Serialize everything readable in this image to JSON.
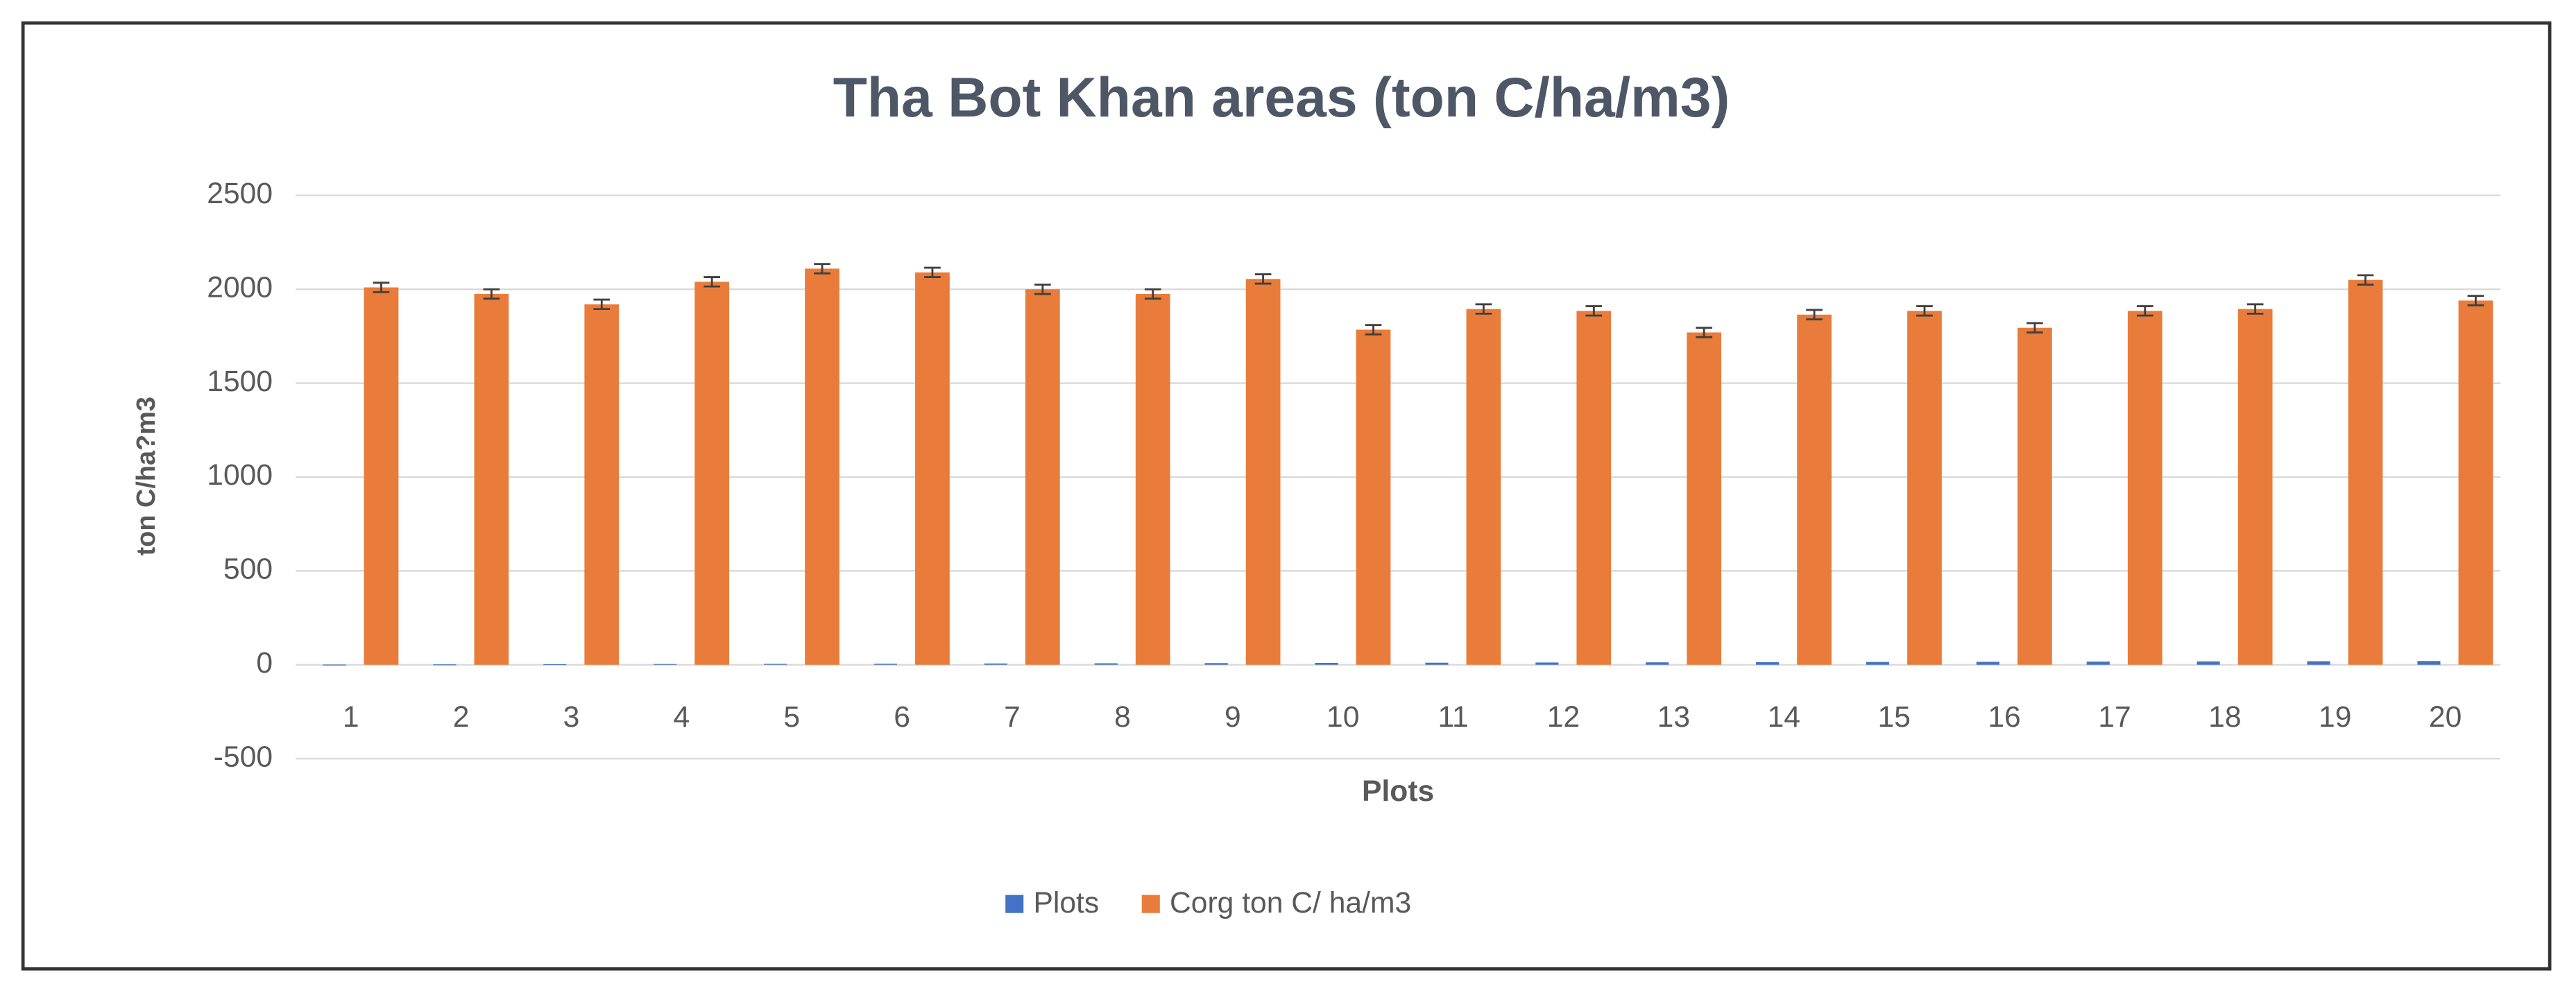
{
  "chart_data": {
    "type": "bar",
    "title": "Tha Bot Khan areas (ton C/ha/m3)",
    "x_label": "Plots",
    "y_label": "ton C/ha?m3",
    "categories": [
      "1",
      "2",
      "3",
      "4",
      "5",
      "6",
      "7",
      "8",
      "9",
      "10",
      "11",
      "12",
      "13",
      "14",
      "15",
      "16",
      "17",
      "18",
      "19",
      "20"
    ],
    "series": [
      {
        "name": "Plots",
        "color": "#4472c4",
        "values": [
          1,
          2,
          3,
          4,
          5,
          6,
          7,
          8,
          9,
          10,
          11,
          12,
          13,
          14,
          15,
          16,
          17,
          18,
          19,
          20
        ]
      },
      {
        "name": "Corg ton C/ ha/m3",
        "color": "#e97c3a",
        "values": [
          2010,
          1975,
          1920,
          2040,
          2110,
          2090,
          2000,
          1975,
          2055,
          1785,
          1895,
          1885,
          1770,
          1865,
          1885,
          1795,
          1885,
          1895,
          2050,
          1940
        ],
        "errors": [
          25,
          25,
          25,
          25,
          25,
          25,
          25,
          25,
          25,
          25,
          25,
          25,
          25,
          25,
          25,
          25,
          25,
          25,
          25,
          25
        ]
      }
    ],
    "ylim": [
      -500,
      2500
    ],
    "yticks": [
      -500,
      0,
      500,
      1000,
      1500,
      2000,
      2500
    ],
    "grid": true,
    "legend": "bottom"
  }
}
